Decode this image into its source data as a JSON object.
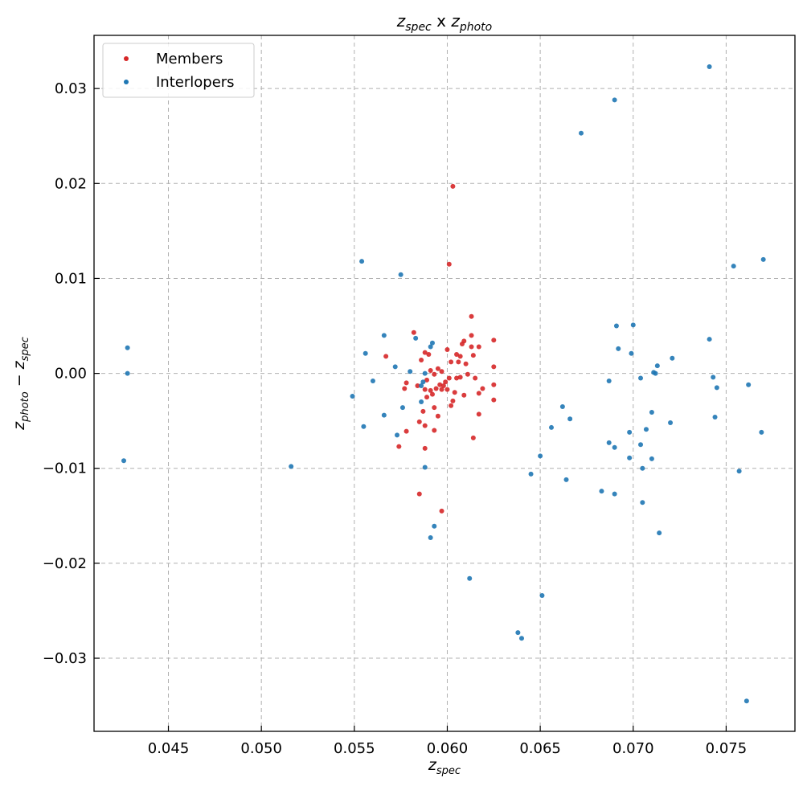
{
  "chart_data": {
    "type": "scatter",
    "title": "z_spec x z_photo",
    "title_parts": {
      "z1": "z",
      "s1": "spec",
      "mid": " x ",
      "z2": "z",
      "s2": "photo"
    },
    "xlabel": "z_spec",
    "xlabel_parts": {
      "z": "z",
      "sub": "spec"
    },
    "ylabel": "z_photo − z_spec",
    "ylabel_parts": {
      "z1": "z",
      "s1": "photo",
      "op": " − ",
      "z2": "z",
      "s2": "spec"
    },
    "xlim": [
      0.041,
      0.0787
    ],
    "ylim": [
      -0.0377,
      0.0356
    ],
    "x_ticks": [
      0.045,
      0.05,
      0.055,
      0.06,
      0.065,
      0.07,
      0.075
    ],
    "x_tick_labels": [
      "0.045",
      "0.050",
      "0.055",
      "0.060",
      "0.065",
      "0.070",
      "0.075"
    ],
    "y_ticks": [
      -0.03,
      -0.02,
      -0.01,
      0.0,
      0.01,
      0.02,
      0.03
    ],
    "y_tick_labels": [
      "−0.03",
      "−0.02",
      "−0.01",
      "0.00",
      "0.01",
      "0.02",
      "0.03"
    ],
    "grid": true,
    "legend_position": "upper-left",
    "series": [
      {
        "name": "Members",
        "color": "#d62728",
        "points": [
          [
            0.0603,
            0.0197
          ],
          [
            0.0601,
            0.0115
          ],
          [
            0.0613,
            0.006
          ],
          [
            0.0582,
            0.0043
          ],
          [
            0.0613,
            0.004
          ],
          [
            0.0609,
            0.0034
          ],
          [
            0.0625,
            0.0035
          ],
          [
            0.0608,
            0.0031
          ],
          [
            0.0613,
            0.0028
          ],
          [
            0.0617,
            0.0028
          ],
          [
            0.06,
            0.0025
          ],
          [
            0.0588,
            0.0022
          ],
          [
            0.059,
            0.002
          ],
          [
            0.0605,
            0.002
          ],
          [
            0.0607,
            0.0018
          ],
          [
            0.0614,
            0.0019
          ],
          [
            0.0567,
            0.0018
          ],
          [
            0.0586,
            0.0014
          ],
          [
            0.0602,
            0.0012
          ],
          [
            0.0606,
            0.0012
          ],
          [
            0.061,
            0.001
          ],
          [
            0.0595,
            0.0005
          ],
          [
            0.0591,
            0.0003
          ],
          [
            0.0597,
            0.0002
          ],
          [
            0.0593,
            -0.0001
          ],
          [
            0.0611,
            -0.0001
          ],
          [
            0.0615,
            -0.0005
          ],
          [
            0.0625,
            0.0007
          ],
          [
            0.0601,
            -0.0005
          ],
          [
            0.0605,
            -0.0005
          ],
          [
            0.0607,
            -0.0004
          ],
          [
            0.0599,
            -0.0009
          ],
          [
            0.0589,
            -0.0007
          ],
          [
            0.0578,
            -0.001
          ],
          [
            0.0596,
            -0.0012
          ],
          [
            0.0598,
            -0.0013
          ],
          [
            0.0594,
            -0.0016
          ],
          [
            0.06,
            -0.0017
          ],
          [
            0.0597,
            -0.0017
          ],
          [
            0.0591,
            -0.0018
          ],
          [
            0.0584,
            -0.0013
          ],
          [
            0.0577,
            -0.0016
          ],
          [
            0.0588,
            -0.0017
          ],
          [
            0.0619,
            -0.0016
          ],
          [
            0.0625,
            -0.0012
          ],
          [
            0.0604,
            -0.002
          ],
          [
            0.0617,
            -0.0021
          ],
          [
            0.0609,
            -0.0023
          ],
          [
            0.0592,
            -0.0022
          ],
          [
            0.0589,
            -0.0025
          ],
          [
            0.0603,
            -0.0029
          ],
          [
            0.0625,
            -0.0028
          ],
          [
            0.0602,
            -0.0034
          ],
          [
            0.0593,
            -0.0036
          ],
          [
            0.0587,
            -0.004
          ],
          [
            0.0617,
            -0.0043
          ],
          [
            0.0595,
            -0.0045
          ],
          [
            0.0585,
            -0.0051
          ],
          [
            0.0588,
            -0.0055
          ],
          [
            0.0593,
            -0.006
          ],
          [
            0.0578,
            -0.0061
          ],
          [
            0.0614,
            -0.0068
          ],
          [
            0.0574,
            -0.0077
          ],
          [
            0.0588,
            -0.0079
          ],
          [
            0.0585,
            -0.0127
          ],
          [
            0.0597,
            -0.0145
          ]
        ]
      },
      {
        "name": "Interlopers",
        "color": "#1f77b4",
        "points": [
          [
            0.0741,
            0.0323
          ],
          [
            0.069,
            0.0288
          ],
          [
            0.0672,
            0.0253
          ],
          [
            0.077,
            0.012
          ],
          [
            0.0554,
            0.0118
          ],
          [
            0.0754,
            0.0113
          ],
          [
            0.0575,
            0.0104
          ],
          [
            0.07,
            0.0051
          ],
          [
            0.0691,
            0.005
          ],
          [
            0.0566,
            0.004
          ],
          [
            0.0583,
            0.0037
          ],
          [
            0.0741,
            0.0036
          ],
          [
            0.0592,
            0.0032
          ],
          [
            0.0591,
            0.0028
          ],
          [
            0.0428,
            0.0027
          ],
          [
            0.0692,
            0.0026
          ],
          [
            0.0556,
            0.0021
          ],
          [
            0.0699,
            0.0021
          ],
          [
            0.0721,
            0.0016
          ],
          [
            0.0713,
            0.0008
          ],
          [
            0.0572,
            0.0007
          ],
          [
            0.058,
            0.0002
          ],
          [
            0.0711,
            0.0001
          ],
          [
            0.0712,
            0.0
          ],
          [
            0.0428,
            0.0
          ],
          [
            0.0588,
            0.0
          ],
          [
            0.0704,
            -0.0005
          ],
          [
            0.0743,
            -0.0004
          ],
          [
            0.056,
            -0.0008
          ],
          [
            0.0687,
            -0.0008
          ],
          [
            0.0587,
            -0.0009
          ],
          [
            0.0762,
            -0.0012
          ],
          [
            0.0586,
            -0.0013
          ],
          [
            0.0745,
            -0.0015
          ],
          [
            0.0576,
            -0.0036
          ],
          [
            0.0549,
            -0.0024
          ],
          [
            0.0586,
            -0.003
          ],
          [
            0.0662,
            -0.0035
          ],
          [
            0.071,
            -0.0041
          ],
          [
            0.0566,
            -0.0044
          ],
          [
            0.0744,
            -0.0046
          ],
          [
            0.0666,
            -0.0048
          ],
          [
            0.072,
            -0.0052
          ],
          [
            0.0555,
            -0.0056
          ],
          [
            0.0656,
            -0.0057
          ],
          [
            0.0707,
            -0.0059
          ],
          [
            0.0698,
            -0.0062
          ],
          [
            0.0769,
            -0.0062
          ],
          [
            0.0573,
            -0.0065
          ],
          [
            0.0687,
            -0.0073
          ],
          [
            0.0704,
            -0.0075
          ],
          [
            0.069,
            -0.0078
          ],
          [
            0.065,
            -0.0087
          ],
          [
            0.0698,
            -0.0089
          ],
          [
            0.071,
            -0.009
          ],
          [
            0.0426,
            -0.0092
          ],
          [
            0.0516,
            -0.0098
          ],
          [
            0.0588,
            -0.0099
          ],
          [
            0.0705,
            -0.01
          ],
          [
            0.0757,
            -0.0103
          ],
          [
            0.0645,
            -0.0106
          ],
          [
            0.0664,
            -0.0112
          ],
          [
            0.0683,
            -0.0124
          ],
          [
            0.069,
            -0.0127
          ],
          [
            0.0705,
            -0.0136
          ],
          [
            0.0593,
            -0.0161
          ],
          [
            0.0714,
            -0.0168
          ],
          [
            0.0591,
            -0.0173
          ],
          [
            0.0612,
            -0.0216
          ],
          [
            0.0651,
            -0.0234
          ],
          [
            0.0638,
            -0.0273
          ],
          [
            0.064,
            -0.0279
          ],
          [
            0.0761,
            -0.0345
          ]
        ]
      }
    ]
  }
}
